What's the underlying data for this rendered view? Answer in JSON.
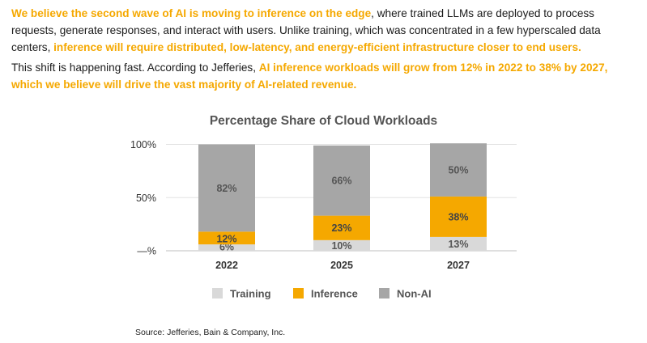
{
  "intro": {
    "p1_hl1": "We believe the second wave of AI is moving to inference on the edge",
    "p1_t1": ", where trained LLMs are deployed to process requests, generate responses, and interact with users. Unlike training, which was concentrated in a few hyperscaled data centers, ",
    "p1_hl2": "inference will require distributed, low-latency, and energy-efficient infrastructure closer to end users.",
    "p2_t1": "This shift is happening fast. According to Jefferies, ",
    "p2_hl1": "AI inference workloads will grow from 12% in 2022 to 38% by 2027, which we believe will drive the vast majority of AI-related revenue."
  },
  "colors": {
    "highlight": "#F5A800",
    "training": "#D9D9D9",
    "inference": "#F5A800",
    "nonai": "#A6A6A6"
  },
  "chart_data": {
    "type": "bar",
    "stacked": true,
    "title": "Percentage Share of Cloud Workloads",
    "categories": [
      "2022",
      "2025",
      "2027"
    ],
    "series": [
      {
        "name": "Training",
        "values": [
          6,
          10,
          13
        ],
        "labels": [
          "6%",
          "10%",
          "13%"
        ]
      },
      {
        "name": "Inference",
        "values": [
          12,
          23,
          38
        ],
        "labels": [
          "12%",
          "23%",
          "38%"
        ]
      },
      {
        "name": "Non-AI",
        "values": [
          82,
          66,
          50
        ],
        "labels": [
          "82%",
          "66%",
          "50%"
        ]
      }
    ],
    "yticks": [
      {
        "value": 0,
        "label": "—%"
      },
      {
        "value": 50,
        "label": "50%"
      },
      {
        "value": 100,
        "label": "100%"
      }
    ],
    "ylim": [
      0,
      100
    ],
    "grid": true,
    "legend": "bottom",
    "source": "Source: Jefferies, Bain & Company, Inc."
  }
}
